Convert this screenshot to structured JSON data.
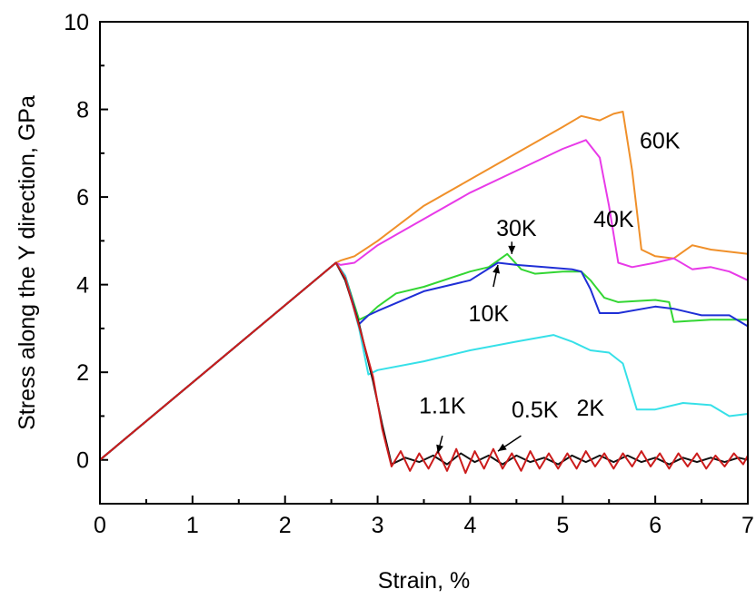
{
  "chart_data": {
    "type": "line",
    "title": "",
    "xlabel": "Strain, %",
    "ylabel": "Stress along the Y direction, GPa",
    "xlim": [
      0,
      7
    ],
    "ylim": [
      -1,
      10
    ],
    "xticks": [
      0,
      1,
      2,
      3,
      4,
      5,
      6,
      7
    ],
    "yticks": [
      0,
      2,
      4,
      6,
      8,
      10
    ],
    "grid": false,
    "legend": "none",
    "series": [
      {
        "name": "60K",
        "color": "#f0902a",
        "x": [
          0,
          2.55,
          2.6,
          2.75,
          3.0,
          3.5,
          4.0,
          4.5,
          5.0,
          5.2,
          5.4,
          5.55,
          5.65,
          5.75,
          5.85,
          6.0,
          6.2,
          6.4,
          6.6,
          6.8,
          7.0
        ],
        "y": [
          0,
          4.5,
          4.55,
          4.65,
          5.0,
          5.8,
          6.4,
          7.0,
          7.6,
          7.85,
          7.75,
          7.9,
          7.95,
          6.6,
          4.8,
          4.65,
          4.6,
          4.9,
          4.8,
          4.75,
          4.7
        ]
      },
      {
        "name": "40K",
        "color": "#e83ae8",
        "x": [
          0,
          2.55,
          2.6,
          2.75,
          3.0,
          3.5,
          4.0,
          4.5,
          5.0,
          5.25,
          5.4,
          5.5,
          5.6,
          5.75,
          6.0,
          6.2,
          6.4,
          6.6,
          6.8,
          7.0
        ],
        "y": [
          0,
          4.5,
          4.45,
          4.5,
          4.9,
          5.5,
          6.1,
          6.6,
          7.1,
          7.3,
          6.9,
          5.8,
          4.5,
          4.4,
          4.5,
          4.6,
          4.35,
          4.4,
          4.3,
          4.1
        ]
      },
      {
        "name": "30K",
        "color": "#33d633",
        "x": [
          0,
          2.55,
          2.65,
          2.8,
          2.9,
          3.0,
          3.2,
          3.5,
          4.0,
          4.2,
          4.4,
          4.55,
          4.7,
          5.0,
          5.2,
          5.3,
          5.45,
          5.6,
          6.0,
          6.15,
          6.2,
          6.6,
          7.0
        ],
        "y": [
          0,
          4.5,
          4.2,
          3.2,
          3.3,
          3.5,
          3.8,
          3.95,
          4.3,
          4.4,
          4.7,
          4.35,
          4.25,
          4.3,
          4.3,
          4.1,
          3.7,
          3.6,
          3.65,
          3.6,
          3.15,
          3.2,
          3.2
        ]
      },
      {
        "name": "10K",
        "color": "#1f2fd6",
        "x": [
          0,
          2.55,
          2.65,
          2.8,
          2.9,
          3.0,
          3.5,
          4.0,
          4.3,
          4.5,
          4.8,
          5.1,
          5.2,
          5.3,
          5.4,
          5.6,
          6.0,
          6.2,
          6.5,
          6.8,
          7.0
        ],
        "y": [
          0,
          4.5,
          4.2,
          3.1,
          3.3,
          3.4,
          3.85,
          4.1,
          4.5,
          4.45,
          4.4,
          4.35,
          4.3,
          3.9,
          3.35,
          3.35,
          3.5,
          3.45,
          3.3,
          3.3,
          3.05
        ]
      },
      {
        "name": "2K",
        "color": "#36e0e8",
        "x": [
          0,
          2.55,
          2.65,
          2.8,
          2.9,
          3.0,
          3.5,
          4.0,
          4.5,
          4.9,
          5.1,
          5.3,
          5.5,
          5.65,
          5.8,
          6.0,
          6.3,
          6.6,
          6.8,
          7.0
        ],
        "y": [
          0,
          4.5,
          4.2,
          3.0,
          1.95,
          2.05,
          2.25,
          2.5,
          2.7,
          2.85,
          2.7,
          2.5,
          2.45,
          2.2,
          1.15,
          1.15,
          1.3,
          1.25,
          1.0,
          1.05
        ]
      },
      {
        "name": "1.1K",
        "color": "#111111",
        "x": [
          0,
          2.55,
          2.65,
          2.8,
          2.95,
          3.05,
          3.15,
          3.3,
          3.45,
          3.6,
          3.75,
          3.9,
          4.05,
          4.2,
          4.35,
          4.5,
          4.65,
          4.8,
          4.95,
          5.1,
          5.25,
          5.4,
          5.55,
          5.7,
          5.85,
          6.0,
          6.15,
          6.3,
          6.45,
          6.6,
          6.75,
          6.9,
          7.0
        ],
        "y": [
          0,
          4.5,
          4.1,
          3.1,
          1.8,
          0.8,
          -0.1,
          0.05,
          -0.05,
          0.1,
          -0.1,
          0.15,
          -0.05,
          0.1,
          -0.1,
          0.1,
          -0.05,
          0.05,
          -0.1,
          0.1,
          -0.05,
          0.1,
          -0.05,
          0.1,
          -0.05,
          0.05,
          -0.1,
          0.05,
          -0.05,
          0.05,
          -0.05,
          0.05,
          0.0
        ]
      },
      {
        "name": "0.5K",
        "color": "#cc1c1c",
        "x": [
          0,
          2.55,
          2.65,
          2.8,
          2.95,
          3.05,
          3.15,
          3.25,
          3.35,
          3.45,
          3.55,
          3.65,
          3.75,
          3.85,
          3.95,
          4.05,
          4.15,
          4.25,
          4.35,
          4.45,
          4.55,
          4.65,
          4.75,
          4.85,
          4.95,
          5.05,
          5.15,
          5.25,
          5.35,
          5.45,
          5.55,
          5.65,
          5.75,
          5.85,
          5.95,
          6.05,
          6.15,
          6.25,
          6.35,
          6.45,
          6.55,
          6.65,
          6.75,
          6.85,
          6.95,
          7.0
        ],
        "y": [
          0,
          4.5,
          4.15,
          3.05,
          1.9,
          0.7,
          -0.15,
          0.2,
          -0.25,
          0.15,
          -0.2,
          0.2,
          -0.25,
          0.25,
          -0.3,
          0.2,
          -0.2,
          0.25,
          -0.2,
          0.15,
          -0.25,
          0.2,
          -0.2,
          0.15,
          -0.2,
          0.15,
          -0.2,
          0.2,
          -0.15,
          0.15,
          -0.2,
          0.15,
          -0.15,
          0.2,
          -0.15,
          0.15,
          -0.2,
          0.15,
          -0.15,
          0.15,
          -0.2,
          0.1,
          -0.15,
          0.15,
          -0.1,
          0.1
        ]
      }
    ],
    "annotations": [
      {
        "text": "60K",
        "x": 6.05,
        "y": 7.3
      },
      {
        "text": "40K",
        "x": 5.55,
        "y": 5.5
      },
      {
        "text": "30K",
        "x": 4.5,
        "y": 5.3
      },
      {
        "text": "10K",
        "x": 4.2,
        "y": 3.35
      },
      {
        "text": "2K",
        "x": 5.3,
        "y": 1.2
      },
      {
        "text": "1.1K",
        "x": 3.7,
        "y": 1.25
      },
      {
        "text": "0.5K",
        "x": 4.7,
        "y": 1.15
      }
    ],
    "arrows": [
      {
        "from": [
          4.45,
          4.98
        ],
        "to": [
          4.45,
          4.7
        ]
      },
      {
        "from": [
          4.25,
          3.95
        ],
        "to": [
          4.3,
          4.45
        ]
      },
      {
        "from": [
          3.7,
          0.55
        ],
        "to": [
          3.65,
          0.15
        ]
      },
      {
        "from": [
          4.55,
          0.55
        ],
        "to": [
          4.3,
          0.2
        ]
      }
    ]
  }
}
